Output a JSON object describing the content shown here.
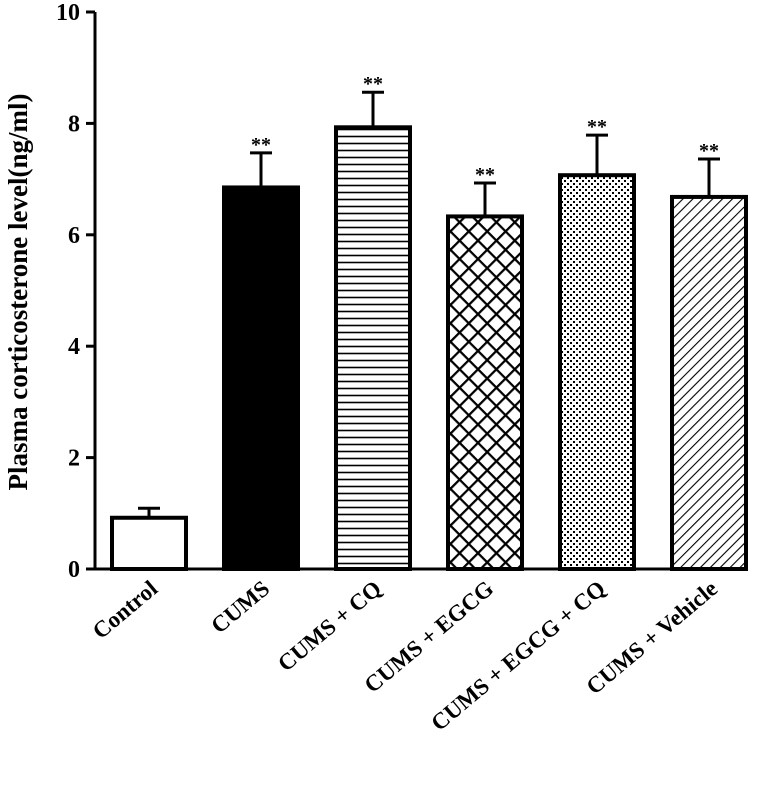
{
  "chart_data": {
    "type": "bar",
    "title": "",
    "xlabel": "",
    "ylabel": "Plasma corticosterone level(ng/ml)",
    "ylim": [
      0,
      10
    ],
    "yticks": [
      "0",
      "2",
      "4",
      "6",
      "8",
      "10"
    ],
    "categories": [
      "Control",
      "CUMS",
      "CUMS + CQ",
      "CUMS + EGCG",
      "CUMS + EGCG + CQ",
      "CUMS + Vehicle"
    ],
    "values": [
      0.92,
      6.85,
      7.93,
      6.33,
      7.07,
      6.68
    ],
    "errors": [
      0.17,
      0.62,
      0.63,
      0.6,
      0.72,
      0.68
    ],
    "significance": [
      "",
      "**",
      "**",
      "**",
      "**",
      "**"
    ],
    "fills": [
      "white",
      "solid",
      "horizontal-lines",
      "crosshatch",
      "dots",
      "diagonal-lines"
    ],
    "grid": false,
    "legend": "none"
  }
}
